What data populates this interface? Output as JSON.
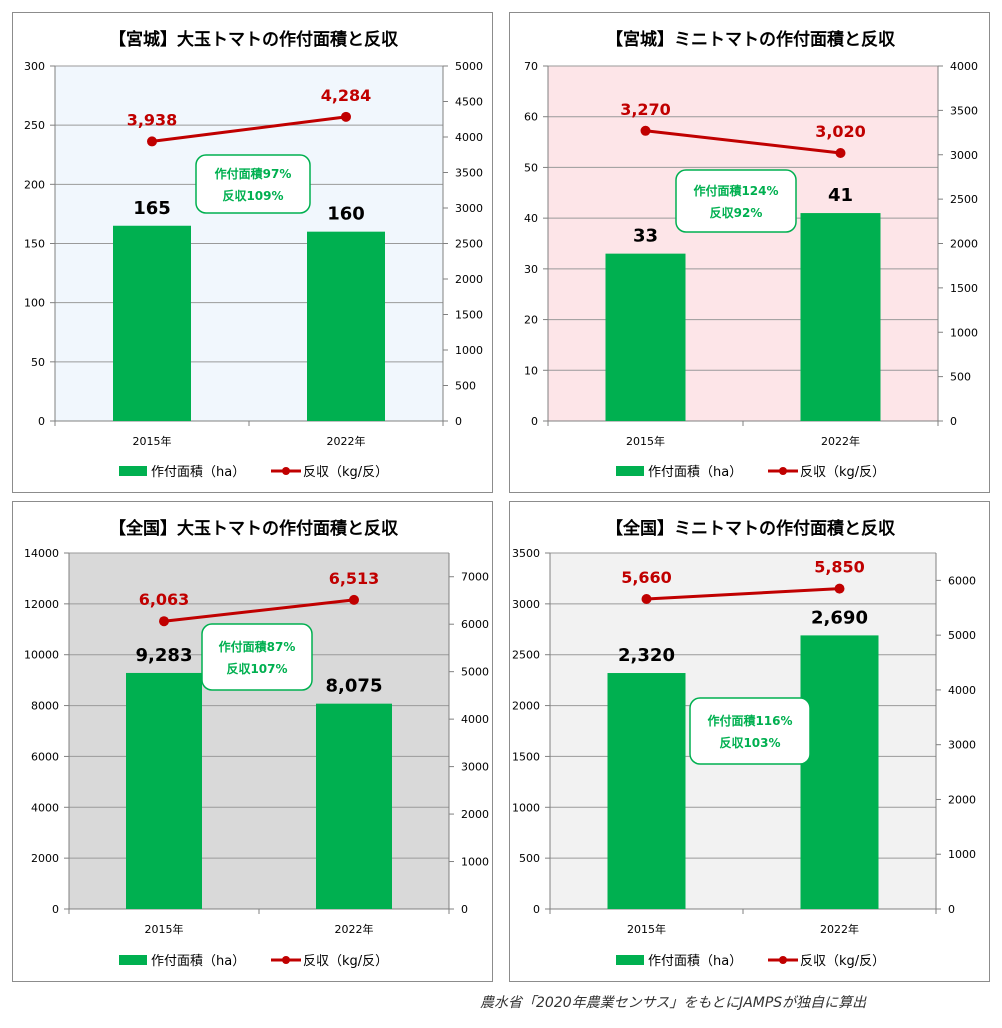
{
  "source_note": "農水省「2020年農業センサス」をもとにJAMPSが独自に算出",
  "legend": {
    "area": "作付面積（ha）",
    "yield": "反収（kg/反）"
  },
  "colors": {
    "bar": "#00b050",
    "line": "#c00000",
    "callout_text": "#00b050"
  },
  "chart_data": [
    {
      "type": "bar",
      "title": "【宮城】大玉トマトの作付面積と反収",
      "background": "#f1f7fd",
      "categories": [
        "2015年",
        "2022年"
      ],
      "series": [
        {
          "name": "作付面積（ha）",
          "type": "bar",
          "axis": "left",
          "values": [
            165,
            160
          ],
          "labels": [
            "165",
            "160"
          ]
        },
        {
          "name": "反収（kg/反）",
          "type": "line",
          "axis": "right",
          "values": [
            3938,
            4284
          ],
          "labels": [
            "3,938",
            "4,284"
          ]
        }
      ],
      "y_left": {
        "min": 0,
        "max": 300,
        "step": 50
      },
      "y_right": {
        "min": 0,
        "max": 5000,
        "step": 500
      },
      "grid": true,
      "legend_position": "bottom",
      "callout": [
        "作付面積97%",
        "反収109%"
      ]
    },
    {
      "type": "bar",
      "title": "【宮城】ミニトマトの作付面積と反収",
      "background": "#fde5e8",
      "categories": [
        "2015年",
        "2022年"
      ],
      "series": [
        {
          "name": "作付面積（ha）",
          "type": "bar",
          "axis": "left",
          "values": [
            33,
            41
          ],
          "labels": [
            "33",
            "41"
          ]
        },
        {
          "name": "反収（kg/反）",
          "type": "line",
          "axis": "right",
          "values": [
            3270,
            3020
          ],
          "labels": [
            "3,270",
            "3,020"
          ]
        }
      ],
      "y_left": {
        "min": 0,
        "max": 70,
        "step": 10
      },
      "y_right": {
        "min": 0,
        "max": 4000,
        "step": 500
      },
      "grid": true,
      "legend_position": "bottom",
      "callout": [
        "作付面積124%",
        "反収92%"
      ]
    },
    {
      "type": "bar",
      "title": "【全国】大玉トマトの作付面積と反収",
      "background": "#d9d9d9",
      "categories": [
        "2015年",
        "2022年"
      ],
      "series": [
        {
          "name": "作付面積（ha）",
          "type": "bar",
          "axis": "left",
          "values": [
            9283,
            8075
          ],
          "labels": [
            "9,283",
            "8,075"
          ]
        },
        {
          "name": "反収（kg/反）",
          "type": "line",
          "axis": "right",
          "values": [
            6063,
            6513
          ],
          "labels": [
            "6,063",
            "6,513"
          ]
        }
      ],
      "y_left": {
        "min": 0,
        "max": 14000,
        "step": 2000
      },
      "y_right": {
        "min": 0,
        "max": 7500,
        "step": 1000
      },
      "grid": true,
      "legend_position": "bottom",
      "callout": [
        "作付面積87%",
        "反収107%"
      ]
    },
    {
      "type": "bar",
      "title": "【全国】ミニトマトの作付面積と反収",
      "background": "#f2f2f2",
      "categories": [
        "2015年",
        "2022年"
      ],
      "series": [
        {
          "name": "作付面積（ha）",
          "type": "bar",
          "axis": "left",
          "values": [
            2320,
            2690
          ],
          "labels": [
            "2,320",
            "2,690"
          ]
        },
        {
          "name": "反収（kg/反）",
          "type": "line",
          "axis": "right",
          "values": [
            5660,
            5850
          ],
          "labels": [
            "5,660",
            "5,850"
          ]
        }
      ],
      "y_left": {
        "min": 0,
        "max": 3500,
        "step": 500
      },
      "y_right": {
        "min": 0,
        "max": 6500,
        "step": 1000
      },
      "grid": true,
      "legend_position": "bottom",
      "callout": [
        "作付面積116%",
        "反収103%"
      ]
    }
  ]
}
